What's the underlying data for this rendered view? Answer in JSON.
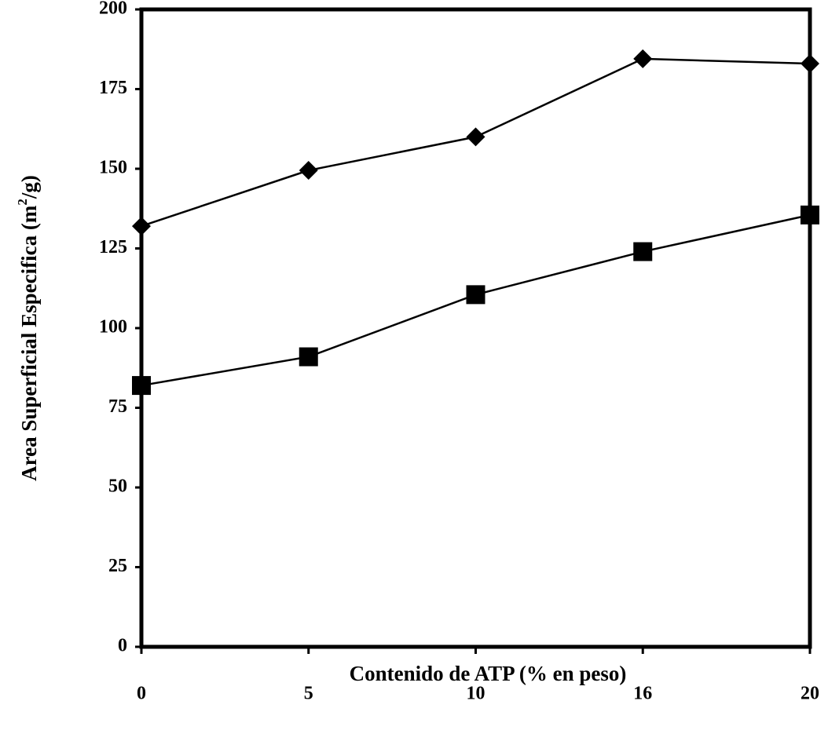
{
  "chart_data": {
    "type": "line",
    "title": "",
    "xlabel": "Contenido de ATP (% en peso)",
    "ylabel": {
      "prefix": "Area Superficial Especifica (m",
      "superscript": "2",
      "suffix": "/g)"
    },
    "categories": [
      "0",
      "5",
      "10",
      "16",
      "20"
    ],
    "ylim": [
      0,
      200
    ],
    "yticks": [
      0,
      25,
      50,
      75,
      100,
      125,
      150,
      175,
      200
    ],
    "grid": false,
    "legend": "none",
    "series": [
      {
        "marker": "diamond",
        "color": "#000000",
        "values": [
          132,
          149.5,
          160,
          184.5,
          183
        ]
      },
      {
        "marker": "square",
        "color": "#000000",
        "values": [
          82,
          91,
          110.5,
          124,
          135.5
        ]
      }
    ]
  }
}
